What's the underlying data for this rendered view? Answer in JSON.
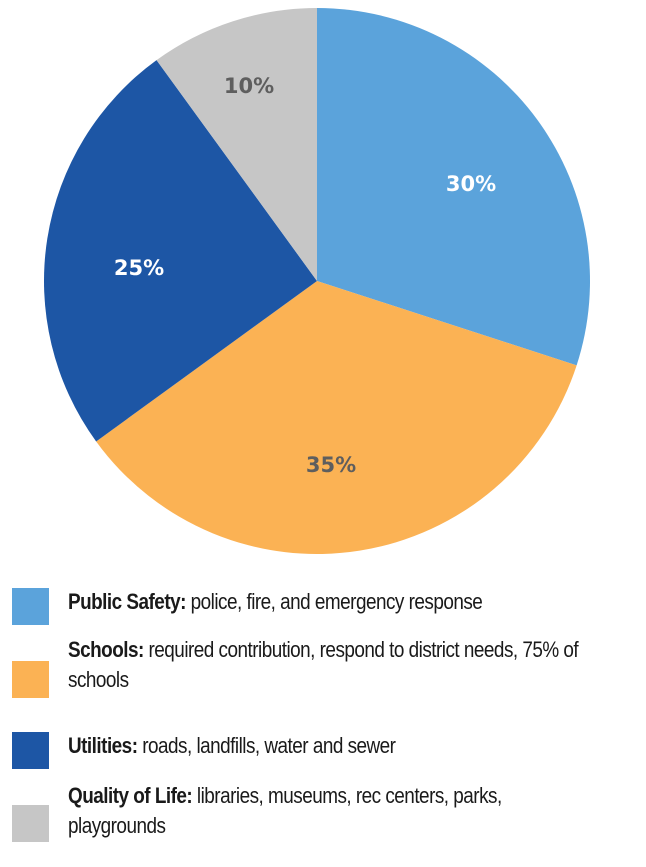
{
  "chart_data": {
    "type": "pie",
    "title": "",
    "start_angle_deg": 0,
    "direction": "clockwise",
    "slices": [
      {
        "name": "Public Safety",
        "value": 30,
        "label": "30%",
        "color": "#5ba3db",
        "label_color": "#ffffff"
      },
      {
        "name": "Schools",
        "value": 35,
        "label": "35%",
        "color": "#fbb254",
        "label_color": "#5e5e5e"
      },
      {
        "name": "Utilities",
        "value": 25,
        "label": "25%",
        "color": "#1d56a5",
        "label_color": "#ffffff"
      },
      {
        "name": "Quality of Life",
        "value": 10,
        "label": "10%",
        "color": "#c6c6c6",
        "label_color": "#5e5e5e"
      }
    ],
    "legend_placement": "bottom"
  },
  "legend": {
    "items": [
      {
        "name": "Public Safety:",
        "desc": " police, fire, and emergency response",
        "color": "#5ba3db"
      },
      {
        "name": "Schools:",
        "desc": " required contribution, respond to district needs, 75% of schools",
        "color": "#fbb254"
      },
      {
        "name": "Utilities:",
        "desc": " roads, landfills, water and sewer",
        "color": "#1d56a5"
      },
      {
        "name": "Quality of Life:",
        "desc": " libraries, museums, rec centers, parks, playgrounds",
        "color": "#c6c6c6"
      }
    ]
  }
}
